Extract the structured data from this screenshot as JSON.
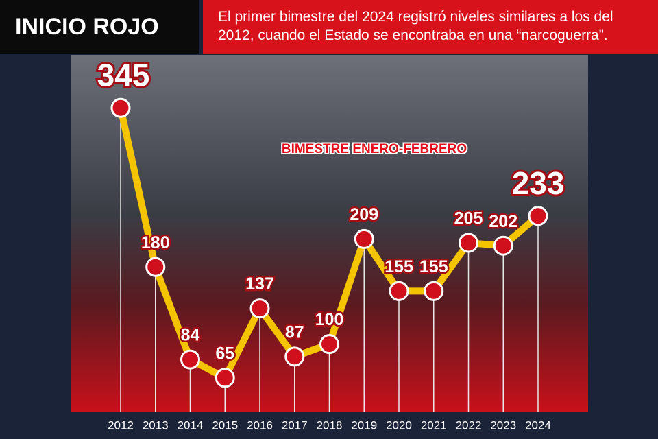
{
  "chart_data": {
    "type": "line",
    "title": "INICIO ROJO",
    "subtitle": "El primer bimestre del 2024 registró niveles similares a los del 2012, cuando el Estado se encontraba en una “narcoguerra”.",
    "annotation": "BIMESTRE ENERO-FEBRERO",
    "categories": [
      "2012",
      "2013",
      "2014",
      "2015",
      "2016",
      "2017",
      "2018",
      "2019",
      "2020",
      "2021",
      "2022",
      "2023",
      "2024"
    ],
    "values": [
      345,
      180,
      84,
      65,
      137,
      87,
      100,
      209,
      155,
      155,
      205,
      202,
      233
    ],
    "color": "#f5c400",
    "marker_color": "#d0101c",
    "ylim": [
      30,
      400
    ]
  }
}
